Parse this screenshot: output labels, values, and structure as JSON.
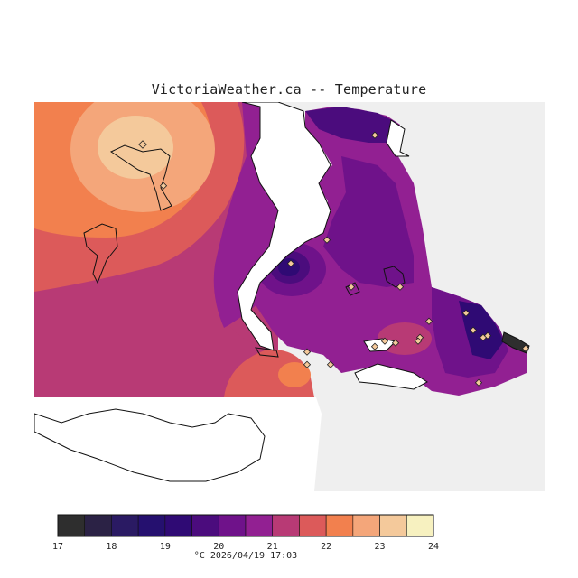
{
  "header": {
    "title": "VictoriaWeather.ca -- Temperature"
  },
  "legend": {
    "unit": "°C",
    "timestamp": "2026/04/19 17:03",
    "ticks": [
      "17",
      "18",
      "19",
      "20",
      "21",
      "22",
      "23",
      "24"
    ],
    "colors": [
      "#2e2e2e",
      "#2b2245",
      "#2a1a63",
      "#25106f",
      "#2f0a74",
      "#4b0c7d",
      "#6f128a",
      "#922092",
      "#b83a75",
      "#dc5a5a",
      "#f2804e",
      "#f4a67a",
      "#f4c99b",
      "#f7f1c0"
    ]
  },
  "map": {
    "background": "#efefef",
    "stations_count_shown": 22
  }
}
